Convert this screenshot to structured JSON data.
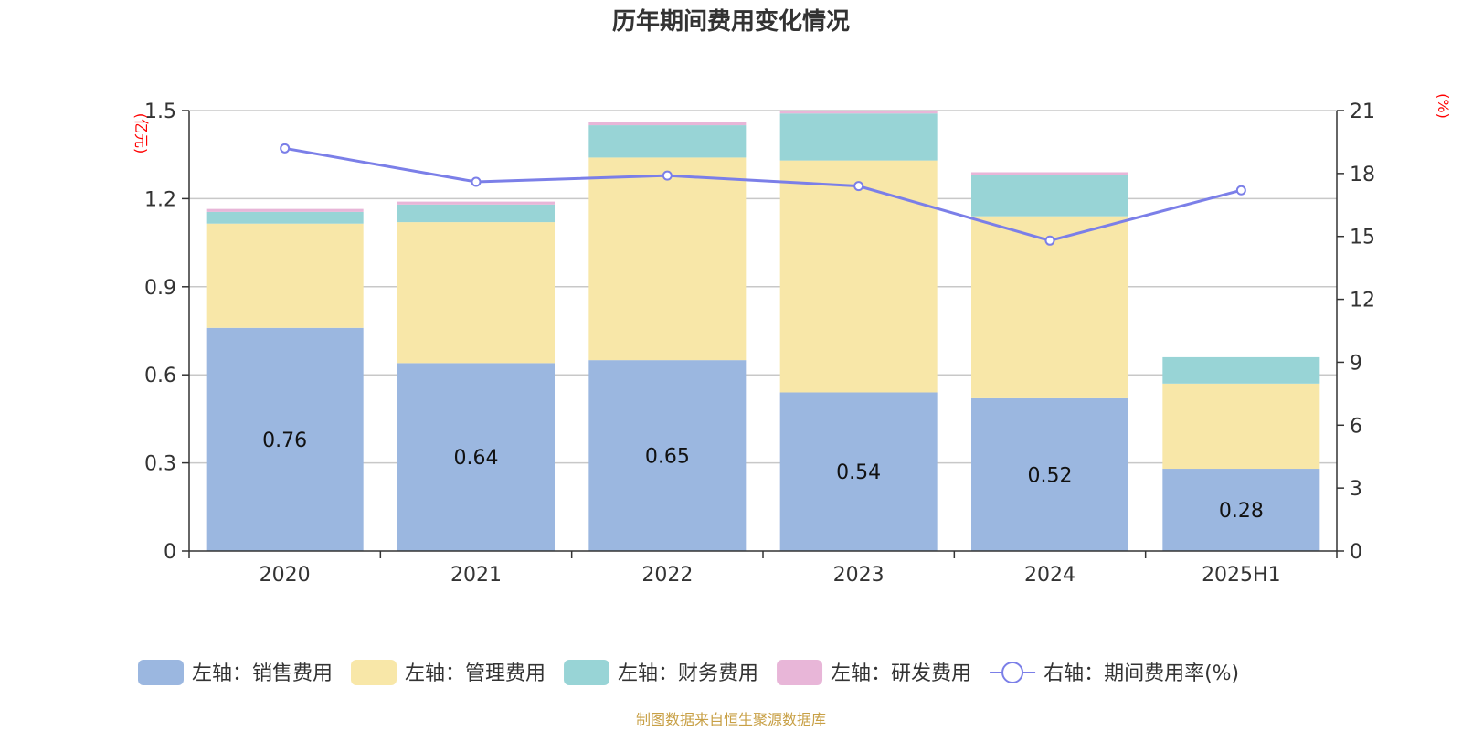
{
  "chart_data": {
    "type": "bar",
    "title": "历年期间费用变化情况",
    "categories": [
      "2020",
      "2021",
      "2022",
      "2023",
      "2024",
      "2025H1"
    ],
    "left_axis": {
      "unit": "(亿元)",
      "ylim": [
        0,
        1.5
      ],
      "ticks": [
        "0",
        "0.3",
        "0.6",
        "0.9",
        "1.2",
        "1.5"
      ]
    },
    "right_axis": {
      "unit": "(%)",
      "ylim": [
        0,
        21
      ],
      "ticks": [
        "0",
        "3",
        "6",
        "9",
        "12",
        "15",
        "18",
        "21"
      ]
    },
    "stacked": true,
    "grid": true,
    "legend_position": "bottom",
    "series": [
      {
        "name": "左轴：销售费用",
        "axis": "left",
        "type": "bar",
        "color": "#9bb7e0",
        "values": [
          0.76,
          0.64,
          0.65,
          0.54,
          0.52,
          0.28
        ],
        "labels": [
          "0.76",
          "0.64",
          "0.65",
          "0.54",
          "0.52",
          "0.28"
        ]
      },
      {
        "name": "左轴：管理费用",
        "axis": "left",
        "type": "bar",
        "color": "#f8e7a8",
        "values": [
          0.355,
          0.48,
          0.69,
          0.79,
          0.62,
          0.29
        ]
      },
      {
        "name": "左轴：财务费用",
        "axis": "left",
        "type": "bar",
        "color": "#98d4d6",
        "values": [
          0.04,
          0.06,
          0.11,
          0.16,
          0.14,
          0.09
        ]
      },
      {
        "name": "左轴：研发费用",
        "axis": "left",
        "type": "bar",
        "color": "#e8b6d8",
        "values": [
          0.01,
          0.01,
          0.01,
          0.01,
          0.01,
          0
        ]
      },
      {
        "name": "右轴：期间费用率(%)",
        "axis": "right",
        "type": "line",
        "color": "#7b7fe8",
        "values": [
          19.2,
          17.6,
          17.9,
          17.4,
          14.8,
          17.2
        ]
      }
    ],
    "source": "制图数据来自恒生聚源数据库"
  }
}
